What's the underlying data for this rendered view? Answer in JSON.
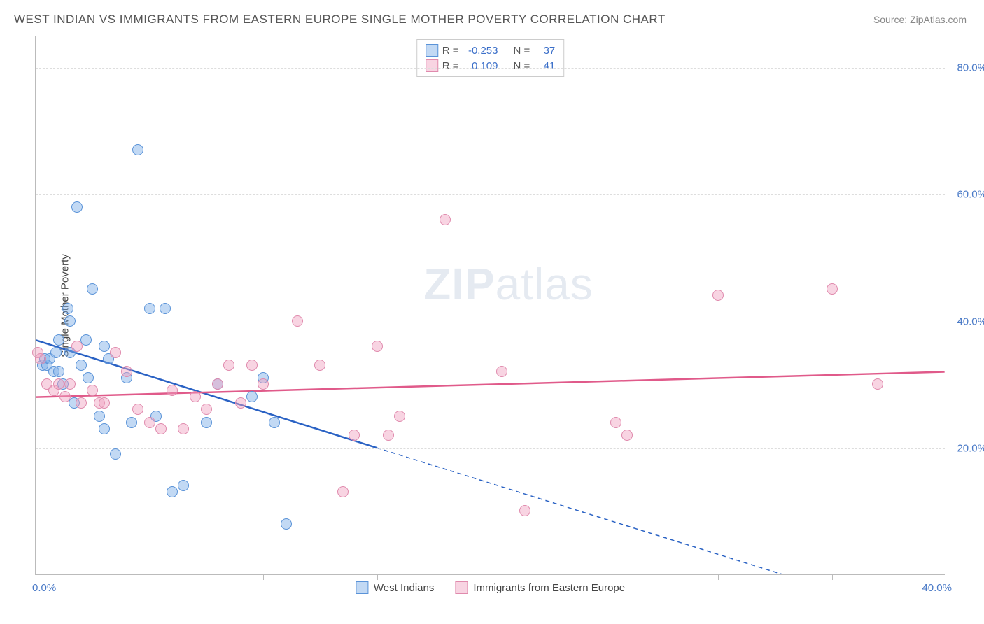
{
  "title": "WEST INDIAN VS IMMIGRANTS FROM EASTERN EUROPE SINGLE MOTHER POVERTY CORRELATION CHART",
  "source": "Source: ZipAtlas.com",
  "watermark_bold": "ZIP",
  "watermark_rest": "atlas",
  "yaxis_title": "Single Mother Poverty",
  "chart": {
    "type": "scatter",
    "background_color": "#ffffff",
    "grid_color": "#dddddd",
    "axis_color": "#bbbbbb",
    "tick_label_color": "#4a7ac7",
    "tick_label_fontsize": 15,
    "xlim": [
      0,
      40
    ],
    "ylim": [
      0,
      85
    ],
    "y_ticks": [
      {
        "value": 20,
        "label": "20.0%"
      },
      {
        "value": 40,
        "label": "40.0%"
      },
      {
        "value": 60,
        "label": "60.0%"
      },
      {
        "value": 80,
        "label": "80.0%"
      }
    ],
    "x_tick_values": [
      0,
      5,
      10,
      15,
      20,
      25,
      30,
      35,
      40
    ],
    "x_min_label": "0.0%",
    "x_max_label": "40.0%",
    "marker_radius": 8,
    "marker_stroke_width": 1.5,
    "trend_line_width": 2.5,
    "series": [
      {
        "key": "west_indians",
        "label": "West Indians",
        "fill_color": "rgba(120,170,230,0.45)",
        "stroke_color": "#5a93d8",
        "trend_color": "#2a62c4",
        "r_value": "-0.253",
        "n_value": "37",
        "trend": {
          "x1": 0,
          "y1": 37,
          "x2_solid": 15,
          "y2_solid": 20,
          "x2_dash": 40,
          "y2_dash": -8
        },
        "points": [
          [
            0.3,
            33
          ],
          [
            0.4,
            34
          ],
          [
            0.5,
            33
          ],
          [
            0.6,
            34
          ],
          [
            0.8,
            32
          ],
          [
            0.9,
            35
          ],
          [
            1.0,
            37
          ],
          [
            1.0,
            32
          ],
          [
            1.2,
            30
          ],
          [
            1.4,
            42
          ],
          [
            1.5,
            40
          ],
          [
            1.5,
            35
          ],
          [
            1.7,
            27
          ],
          [
            1.8,
            58
          ],
          [
            2.0,
            33
          ],
          [
            2.2,
            37
          ],
          [
            2.3,
            31
          ],
          [
            2.5,
            45
          ],
          [
            2.8,
            25
          ],
          [
            3.0,
            36
          ],
          [
            3.0,
            23
          ],
          [
            3.2,
            34
          ],
          [
            3.5,
            19
          ],
          [
            4.0,
            31
          ],
          [
            4.2,
            24
          ],
          [
            4.5,
            67
          ],
          [
            5.0,
            42
          ],
          [
            5.3,
            25
          ],
          [
            5.7,
            42
          ],
          [
            6.0,
            13
          ],
          [
            6.5,
            14
          ],
          [
            7.5,
            24
          ],
          [
            8.0,
            30
          ],
          [
            9.5,
            28
          ],
          [
            10.0,
            31
          ],
          [
            10.5,
            24
          ],
          [
            11.0,
            8
          ]
        ]
      },
      {
        "key": "eastern_europe",
        "label": "Immigrants from Eastern Europe",
        "fill_color": "rgba(240,160,190,0.45)",
        "stroke_color": "#e08aad",
        "trend_color": "#e05a8a",
        "r_value": "0.109",
        "n_value": "41",
        "trend": {
          "x1": 0,
          "y1": 28,
          "x2_solid": 40,
          "y2_solid": 32,
          "x2_dash": 40,
          "y2_dash": 32
        },
        "points": [
          [
            0.1,
            35
          ],
          [
            0.2,
            34
          ],
          [
            0.5,
            30
          ],
          [
            0.8,
            29
          ],
          [
            1.0,
            30
          ],
          [
            1.3,
            28
          ],
          [
            1.5,
            30
          ],
          [
            1.8,
            36
          ],
          [
            2.0,
            27
          ],
          [
            2.5,
            29
          ],
          [
            2.8,
            27
          ],
          [
            3.0,
            27
          ],
          [
            3.5,
            35
          ],
          [
            4.0,
            32
          ],
          [
            4.5,
            26
          ],
          [
            5.0,
            24
          ],
          [
            5.5,
            23
          ],
          [
            6.0,
            29
          ],
          [
            6.5,
            23
          ],
          [
            7.0,
            28
          ],
          [
            7.5,
            26
          ],
          [
            8.0,
            30
          ],
          [
            8.5,
            33
          ],
          [
            9.0,
            27
          ],
          [
            9.5,
            33
          ],
          [
            10.0,
            30
          ],
          [
            11.5,
            40
          ],
          [
            12.5,
            33
          ],
          [
            13.5,
            13
          ],
          [
            14.0,
            22
          ],
          [
            15.0,
            36
          ],
          [
            15.5,
            22
          ],
          [
            16.0,
            25
          ],
          [
            18.0,
            56
          ],
          [
            20.5,
            32
          ],
          [
            21.5,
            10
          ],
          [
            25.5,
            24
          ],
          [
            26.0,
            22
          ],
          [
            30.0,
            44
          ],
          [
            35.0,
            45
          ],
          [
            37.0,
            30
          ]
        ]
      }
    ],
    "stats_labels": {
      "r": "R  =",
      "n": "N  ="
    }
  }
}
